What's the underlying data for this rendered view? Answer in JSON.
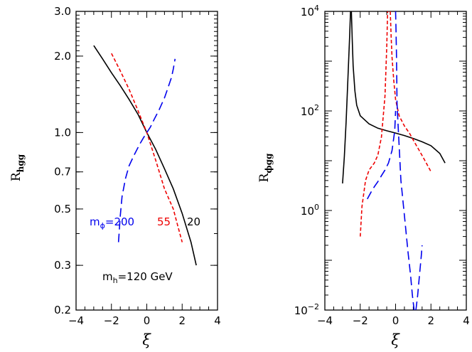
{
  "chart_data": [
    {
      "type": "line",
      "xlabel": "ξ",
      "ylabel": "R",
      "ylabel_sub": "hgg",
      "xlim": [
        -4,
        4
      ],
      "ylim": [
        0.2,
        3.0
      ],
      "yscale": "log",
      "xticks": [
        "−4",
        "−2",
        "0",
        "2",
        "4"
      ],
      "yticks": [
        {
          "value": 0.2,
          "label": "0.2"
        },
        {
          "value": 0.3,
          "label": "0.3"
        },
        {
          "value": 0.5,
          "label": "0.5"
        },
        {
          "value": 0.7,
          "label": "0.7"
        },
        {
          "value": 1.0,
          "label": "1.0"
        },
        {
          "value": 2.0,
          "label": "2.0"
        },
        {
          "value": 3.0,
          "label": "3.0"
        }
      ],
      "annotations": [
        {
          "text": "m",
          "sub": "ϕ",
          "rest": "=200",
          "color": "#0000ee"
        },
        {
          "text": "55",
          "color": "#ee0000"
        },
        {
          "text": "20",
          "color": "#000000"
        },
        {
          "text": "m",
          "sub": "h",
          "rest": "=120 GeV",
          "color": "#000000"
        }
      ],
      "series": [
        {
          "color": "#000000",
          "dash": "none",
          "x": [
            -3.0,
            -2.5,
            -2.0,
            -1.5,
            -1.0,
            -0.5,
            0.0,
            0.5,
            1.0,
            1.5,
            2.0,
            2.5,
            2.8
          ],
          "y": [
            2.2,
            1.95,
            1.72,
            1.53,
            1.35,
            1.18,
            1.0,
            0.86,
            0.72,
            0.6,
            0.48,
            0.37,
            0.3
          ]
        },
        {
          "color": "#ee0000",
          "dash": "5,3",
          "x": [
            -2.0,
            -1.5,
            -1.0,
            -0.5,
            0.0,
            0.5,
            1.0,
            1.5,
            1.75,
            2.0
          ],
          "y": [
            2.05,
            1.75,
            1.48,
            1.22,
            1.0,
            0.78,
            0.6,
            0.5,
            0.43,
            0.37
          ]
        },
        {
          "color": "#0000ee",
          "dash": "12,6",
          "x": [
            -1.6,
            -1.5,
            -1.4,
            -1.2,
            -1.0,
            -0.7,
            -0.4,
            -0.2,
            0.0,
            0.2,
            0.4,
            0.7,
            1.0,
            1.2,
            1.4,
            1.5,
            1.6
          ],
          "y": [
            0.37,
            0.47,
            0.56,
            0.66,
            0.74,
            0.82,
            0.9,
            0.95,
            1.0,
            1.05,
            1.12,
            1.23,
            1.37,
            1.5,
            1.65,
            1.78,
            1.95
          ]
        }
      ]
    },
    {
      "type": "line",
      "xlabel": "ξ",
      "ylabel": "R",
      "ylabel_sub": "ϕgg",
      "xlim": [
        -4,
        4
      ],
      "ylim": [
        0.01,
        10000
      ],
      "yscale": "log",
      "xticks": [
        "−4",
        "−2",
        "0",
        "2",
        "4"
      ],
      "yticks": [
        {
          "value": 0.01,
          "base": "10",
          "exp": "−2"
        },
        {
          "value": 1,
          "base": "10",
          "exp": "0"
        },
        {
          "value": 100,
          "base": "10",
          "exp": "2"
        },
        {
          "value": 10000,
          "base": "10",
          "exp": "4"
        }
      ],
      "series": [
        {
          "color": "#000000",
          "dash": "none",
          "x": [
            -3.0,
            -2.9,
            -2.8,
            -2.7,
            -2.6,
            -2.55,
            -2.5
          ],
          "y": [
            3.5,
            12,
            60,
            400,
            3000,
            10000,
            10000
          ]
        },
        {
          "color": "#000000",
          "dash": "none",
          "x": [
            -2.5,
            -2.45,
            -2.4,
            -2.3,
            -2.2,
            -2.0,
            -1.5,
            -1.0,
            -0.5,
            0.0,
            0.5,
            1.0,
            1.5,
            2.0,
            2.5,
            2.8
          ],
          "y": [
            10000,
            2500,
            800,
            250,
            130,
            80,
            55,
            45,
            40,
            36,
            32,
            28,
            24,
            20,
            14,
            9
          ]
        },
        {
          "color": "#ee0000",
          "dash": "5,3",
          "x": [
            -2.0,
            -1.9,
            -1.7,
            -1.5,
            -1.2,
            -1.0,
            -0.8,
            -0.6,
            -0.5,
            -0.45
          ],
          "y": [
            0.3,
            1.2,
            4,
            6.5,
            9,
            13,
            30,
            200,
            2000,
            10000
          ]
        },
        {
          "color": "#ee0000",
          "dash": "5,3",
          "x": [
            -0.3,
            -0.25,
            -0.2,
            -0.1,
            0.0,
            0.2,
            0.5,
            0.8,
            1.0,
            1.3,
            1.6,
            2.0
          ],
          "y": [
            10000,
            3000,
            1200,
            400,
            170,
            80,
            50,
            35,
            26,
            17,
            11,
            6
          ]
        },
        {
          "color": "#0000ee",
          "dash": "12,6",
          "x": [
            -1.6,
            -1.4,
            -1.2,
            -1.0,
            -0.8,
            -0.6,
            -0.4,
            -0.2,
            -0.05,
            0.0
          ],
          "y": [
            1.7,
            2.3,
            3,
            3.8,
            5,
            6.5,
            9,
            16,
            40,
            100
          ]
        },
        {
          "color": "#0000ee",
          "dash": "12,6",
          "x": [
            -0.02,
            0.0,
            0.02,
            0.05,
            0.07,
            0.08,
            0.1
          ],
          "y": [
            10000,
            10000,
            5000,
            1500,
            400,
            150,
            100
          ]
        },
        {
          "color": "#0000ee",
          "dash": "12,6",
          "x": [
            0.1,
            0.2,
            0.3,
            0.5,
            0.7,
            0.85,
            0.95,
            1.05
          ],
          "y": [
            100,
            20,
            4,
            0.8,
            0.15,
            0.05,
            0.02,
            0.01
          ]
        },
        {
          "color": "#0000ee",
          "dash": "12,6",
          "x": [
            1.15,
            1.25,
            1.35,
            1.45,
            1.5
          ],
          "y": [
            0.01,
            0.02,
            0.05,
            0.12,
            0.2
          ]
        }
      ]
    }
  ]
}
